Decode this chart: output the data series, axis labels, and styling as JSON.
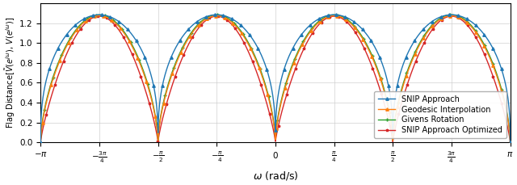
{
  "title": "",
  "xlabel": "$\\omega$ (rad/s)",
  "ylabel": "Flag Distance[$\\tilde{V}(e^{j\\omega})$, $V(e^{j\\omega})$]",
  "xlim": [
    -3.14159265,
    3.14159265
  ],
  "ylim": [
    0.0,
    1.4
  ],
  "yticks": [
    0.0,
    0.2,
    0.4,
    0.6,
    0.8,
    1.0,
    1.2
  ],
  "xtick_labels": [
    "$-\\pi$",
    "$-\\frac{3\\pi}{4}$",
    "$-\\frac{\\pi}{2}$",
    "$-\\frac{\\pi}{4}$",
    "$0$",
    "$\\frac{\\pi}{4}$",
    "$\\frac{\\pi}{2}$",
    "$\\frac{3\\pi}{4}$",
    "$\\pi$"
  ],
  "xtick_vals": [
    -3.14159265,
    -2.35619449,
    -1.57079633,
    -0.78539816,
    0.0,
    0.78539816,
    1.57079633,
    2.35619449,
    3.14159265
  ],
  "colors": {
    "snip": "#1f77b4",
    "geodesic": "#ff7f0e",
    "givens": "#2ca02c",
    "snip_opt": "#d62728"
  },
  "legend": [
    "SNIP Approach",
    "Geodesic Interpolation",
    "Givens Rotation",
    "SNIP Approach Optimized"
  ],
  "curve_params": {
    "snip": {
      "power": 0.38,
      "scale": 1.285
    },
    "geodesic": {
      "power": 0.62,
      "scale": 1.275
    },
    "givens": {
      "power": 0.6,
      "scale": 1.285
    },
    "snip_opt": {
      "power": 0.8,
      "scale": 1.27
    }
  },
  "figsize": [
    6.4,
    2.29
  ],
  "dpi": 100
}
